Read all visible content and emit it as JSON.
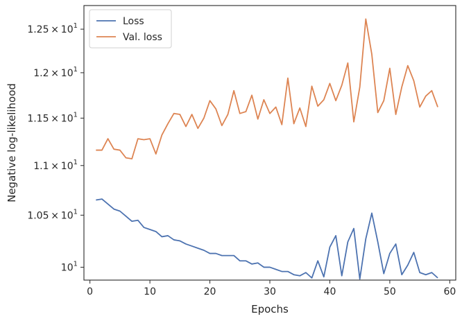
{
  "chart_data": {
    "type": "line",
    "title": "",
    "xlabel": "Epochs",
    "ylabel": "Negative log-likelihood",
    "xlim": [
      -1,
      61
    ],
    "ylim": [
      9.88,
      12.78
    ],
    "y_scale": "log",
    "grid": false,
    "legend_position": "top-left",
    "x_ticks": [
      {
        "value": 0,
        "label": "0"
      },
      {
        "value": 10,
        "label": "10"
      },
      {
        "value": 20,
        "label": "20"
      },
      {
        "value": 30,
        "label": "30"
      },
      {
        "value": 40,
        "label": "40"
      },
      {
        "value": 50,
        "label": "50"
      },
      {
        "value": 60,
        "label": "60"
      }
    ],
    "y_ticks": [
      {
        "value": 10.0,
        "mant": "",
        "base": "10",
        "exp": "1"
      },
      {
        "value": 10.5,
        "mant": "1.05",
        "base": "10",
        "exp": "1"
      },
      {
        "value": 11.0,
        "mant": "1.1",
        "base": "10",
        "exp": "1"
      },
      {
        "value": 11.5,
        "mant": "1.15",
        "base": "10",
        "exp": "1"
      },
      {
        "value": 12.0,
        "mant": "1.2",
        "base": "10",
        "exp": "1"
      },
      {
        "value": 12.5,
        "mant": "1.25",
        "base": "10",
        "exp": "1"
      }
    ],
    "series": [
      {
        "name": "Loss",
        "color": "#4c72b0",
        "x": [
          1,
          2,
          3,
          4,
          5,
          6,
          7,
          8,
          9,
          10,
          11,
          12,
          13,
          14,
          15,
          16,
          17,
          18,
          19,
          20,
          21,
          22,
          23,
          24,
          25,
          26,
          27,
          28,
          29,
          30,
          31,
          32,
          33,
          34,
          35,
          36,
          37,
          38,
          39,
          40,
          41,
          42,
          43,
          44,
          45,
          46,
          47,
          48,
          49,
          50,
          51,
          52,
          53,
          54,
          55,
          56,
          57,
          58
        ],
        "values": [
          10.65,
          10.66,
          10.61,
          10.56,
          10.54,
          10.49,
          10.44,
          10.45,
          10.38,
          10.36,
          10.34,
          10.29,
          10.3,
          10.26,
          10.25,
          10.22,
          10.2,
          10.18,
          10.16,
          10.13,
          10.13,
          10.11,
          10.11,
          10.11,
          10.06,
          10.06,
          10.03,
          10.04,
          10.0,
          10.0,
          9.98,
          9.96,
          9.96,
          9.93,
          9.92,
          9.95,
          9.9,
          10.06,
          9.91,
          10.19,
          10.3,
          9.92,
          10.24,
          10.37,
          9.89,
          10.27,
          10.52,
          10.24,
          9.94,
          10.13,
          10.22,
          9.93,
          10.02,
          10.14,
          9.95,
          9.93,
          9.95,
          9.9
        ]
      },
      {
        "name": "Val. loss",
        "color": "#dd8452",
        "x": [
          1,
          2,
          3,
          4,
          5,
          6,
          7,
          8,
          9,
          10,
          11,
          12,
          13,
          14,
          15,
          16,
          17,
          18,
          19,
          20,
          21,
          22,
          23,
          24,
          25,
          26,
          27,
          28,
          29,
          30,
          31,
          32,
          33,
          34,
          35,
          36,
          37,
          38,
          39,
          40,
          41,
          42,
          43,
          44,
          45,
          46,
          47,
          48,
          49,
          50,
          51,
          52,
          53,
          54,
          55,
          56,
          57,
          58
        ],
        "values": [
          11.16,
          11.16,
          11.28,
          11.17,
          11.16,
          11.08,
          11.07,
          11.28,
          11.27,
          11.28,
          11.12,
          11.32,
          11.44,
          11.55,
          11.54,
          11.41,
          11.54,
          11.39,
          11.5,
          11.69,
          11.6,
          11.42,
          11.54,
          11.8,
          11.55,
          11.57,
          11.75,
          11.49,
          11.7,
          11.55,
          11.62,
          11.43,
          11.94,
          11.44,
          11.61,
          11.41,
          11.85,
          11.63,
          11.7,
          11.88,
          11.69,
          11.86,
          12.11,
          11.46,
          11.84,
          12.62,
          12.21,
          11.56,
          11.69,
          12.05,
          11.54,
          11.84,
          12.08,
          11.91,
          11.62,
          11.74,
          11.8,
          11.62
        ]
      }
    ]
  }
}
